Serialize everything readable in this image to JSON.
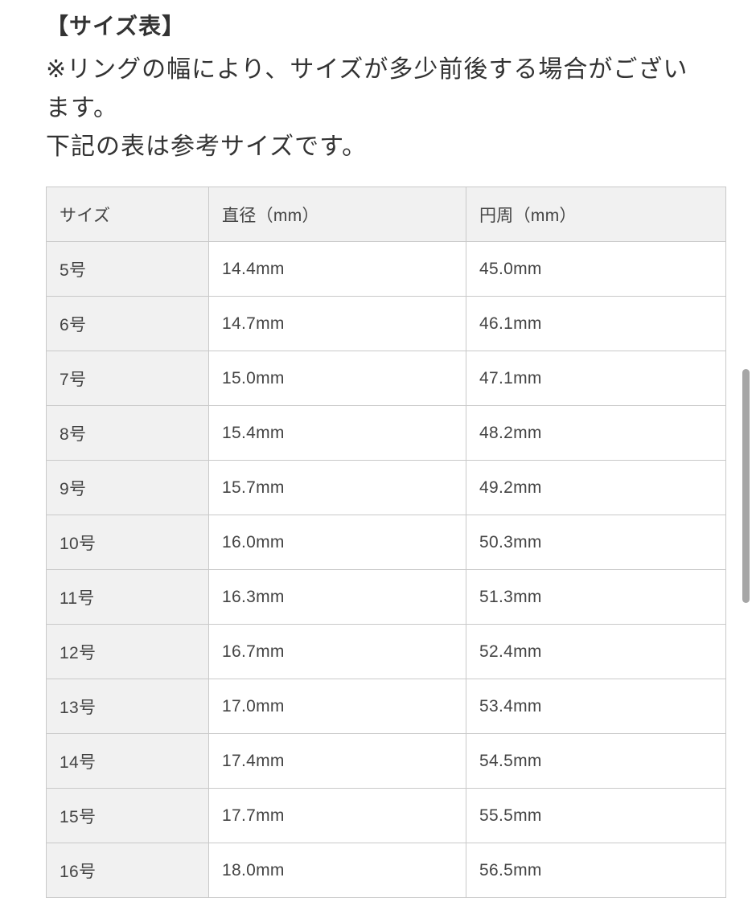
{
  "page": {
    "title": "【サイズ表】",
    "note_lines": [
      "※リングの幅により、サイズが多少前後する場合がござい",
      "ます。",
      "下記の表は参考サイズです。"
    ]
  },
  "colors": {
    "text": "#333333",
    "cell_gray_bg": "#f1f1f1",
    "border": "#c9c9c9",
    "scrollbar_thumb": "#a6a6a6"
  },
  "size_table": {
    "columns": [
      "サイズ",
      "直径（mm）",
      "円周（mm）"
    ],
    "rows": [
      {
        "size": "5号",
        "diameter": "14.4mm",
        "circumference": "45.0mm"
      },
      {
        "size": "6号",
        "diameter": "14.7mm",
        "circumference": "46.1mm"
      },
      {
        "size": "7号",
        "diameter": "15.0mm",
        "circumference": "47.1mm"
      },
      {
        "size": "8号",
        "diameter": "15.4mm",
        "circumference": "48.2mm"
      },
      {
        "size": "9号",
        "diameter": "15.7mm",
        "circumference": "49.2mm"
      },
      {
        "size": "10号",
        "diameter": "16.0mm",
        "circumference": "50.3mm"
      },
      {
        "size": "11号",
        "diameter": "16.3mm",
        "circumference": "51.3mm"
      },
      {
        "size": "12号",
        "diameter": "16.7mm",
        "circumference": "52.4mm"
      },
      {
        "size": "13号",
        "diameter": "17.0mm",
        "circumference": "53.4mm"
      },
      {
        "size": "14号",
        "diameter": "17.4mm",
        "circumference": "54.5mm"
      },
      {
        "size": "15号",
        "diameter": "17.7mm",
        "circumference": "55.5mm"
      },
      {
        "size": "16号",
        "diameter": "18.0mm",
        "circumference": "56.5mm"
      }
    ]
  }
}
